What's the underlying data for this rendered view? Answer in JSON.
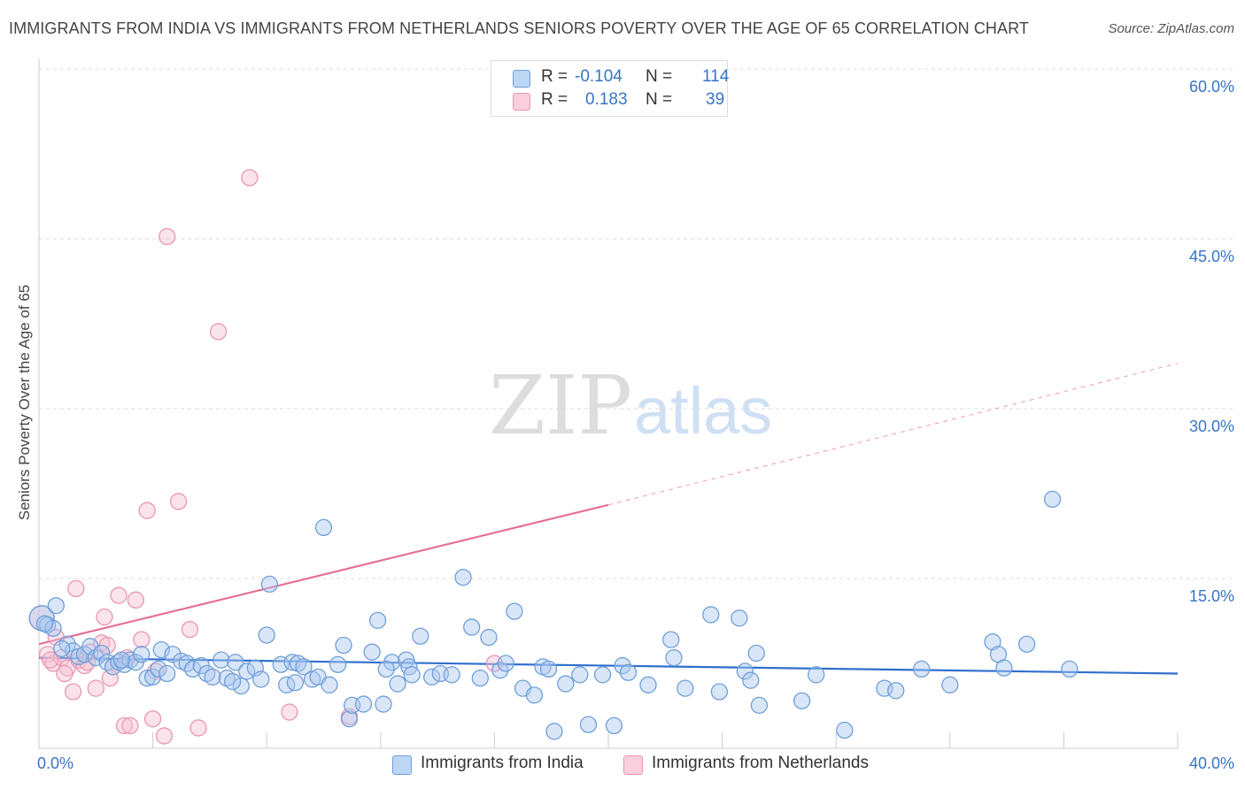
{
  "title": "IMMIGRANTS FROM INDIA VS IMMIGRANTS FROM NETHERLANDS SENIORS POVERTY OVER THE AGE OF 65 CORRELATION CHART",
  "source": "Source: ZipAtlas.com",
  "watermark": {
    "zip": "ZIP",
    "atlas": "atlas"
  },
  "colors": {
    "india_fill": "#aac8f0",
    "india_stroke": "#6f9fd8",
    "india_line": "#2f6fcc",
    "neth_fill": "#f7c0d2",
    "neth_stroke": "#e996b3",
    "neth_line": "#e4709a",
    "tick_text": "#3873c8",
    "grid": "#dddddd"
  },
  "legend": {
    "r_label": "R =",
    "n_label": "N =",
    "india": {
      "r": "-0.104",
      "n": "114"
    },
    "netherlands": {
      "r": "0.183",
      "n": "39"
    }
  },
  "chart_data": {
    "type": "scatter",
    "title": "IMMIGRANTS FROM INDIA VS IMMIGRANTS FROM NETHERLANDS SENIORS POVERTY OVER THE AGE OF 65 CORRELATION CHART",
    "xlabel": "",
    "ylabel": "Seniors Poverty Over the Age of 65",
    "xlim": [
      0,
      40
    ],
    "ylim": [
      0,
      60
    ],
    "x_tick_labels": [
      "0.0%",
      "40.0%"
    ],
    "y_ticks": [
      15,
      30,
      45,
      60
    ],
    "y_tick_labels": [
      "15.0%",
      "30.0%",
      "45.0%",
      "60.0%"
    ],
    "series": [
      {
        "name": "Immigrants from India",
        "trend": {
          "x": [
            0,
            40
          ],
          "y": [
            8.0,
            6.6
          ],
          "dashed_from": null
        },
        "points": [
          [
            0.1,
            11.5
          ],
          [
            0.3,
            10.9
          ],
          [
            0.5,
            10.6
          ],
          [
            0.6,
            12.6
          ],
          [
            1.0,
            9.2
          ],
          [
            1.2,
            8.6
          ],
          [
            1.4,
            8.1
          ],
          [
            1.6,
            8.3
          ],
          [
            1.8,
            9.0
          ],
          [
            2.0,
            8.0
          ],
          [
            2.2,
            8.4
          ],
          [
            2.4,
            7.6
          ],
          [
            2.6,
            7.2
          ],
          [
            2.8,
            7.6
          ],
          [
            3.0,
            7.4
          ],
          [
            3.2,
            7.8
          ],
          [
            3.4,
            7.6
          ],
          [
            3.6,
            8.3
          ],
          [
            3.8,
            6.2
          ],
          [
            4.0,
            6.3
          ],
          [
            4.2,
            7.0
          ],
          [
            4.3,
            8.7
          ],
          [
            4.5,
            6.6
          ],
          [
            4.7,
            8.3
          ],
          [
            5.0,
            7.7
          ],
          [
            5.2,
            7.5
          ],
          [
            5.4,
            7.0
          ],
          [
            5.7,
            7.3
          ],
          [
            5.9,
            6.6
          ],
          [
            6.1,
            6.3
          ],
          [
            6.4,
            7.8
          ],
          [
            6.6,
            6.2
          ],
          [
            6.9,
            7.6
          ],
          [
            7.1,
            5.5
          ],
          [
            7.3,
            6.8
          ],
          [
            7.6,
            7.1
          ],
          [
            7.8,
            6.1
          ],
          [
            8.0,
            10.0
          ],
          [
            8.1,
            14.5
          ],
          [
            8.5,
            7.4
          ],
          [
            8.7,
            5.6
          ],
          [
            8.9,
            7.6
          ],
          [
            9.1,
            7.5
          ],
          [
            9.3,
            7.2
          ],
          [
            9.6,
            6.1
          ],
          [
            9.8,
            6.3
          ],
          [
            10.0,
            19.5
          ],
          [
            10.2,
            5.6
          ],
          [
            10.5,
            7.4
          ],
          [
            10.7,
            9.1
          ],
          [
            10.9,
            2.6
          ],
          [
            11.0,
            3.8
          ],
          [
            11.4,
            3.9
          ],
          [
            11.7,
            8.5
          ],
          [
            11.9,
            11.3
          ],
          [
            12.1,
            3.9
          ],
          [
            12.4,
            7.6
          ],
          [
            12.6,
            5.7
          ],
          [
            12.9,
            7.8
          ],
          [
            13.0,
            7.2
          ],
          [
            13.4,
            9.9
          ],
          [
            13.8,
            6.3
          ],
          [
            14.1,
            6.6
          ],
          [
            14.5,
            6.5
          ],
          [
            14.9,
            15.1
          ],
          [
            15.2,
            10.7
          ],
          [
            15.5,
            6.2
          ],
          [
            15.8,
            9.8
          ],
          [
            16.2,
            6.9
          ],
          [
            16.4,
            7.5
          ],
          [
            16.7,
            12.1
          ],
          [
            17.0,
            5.3
          ],
          [
            17.4,
            4.7
          ],
          [
            17.7,
            7.2
          ],
          [
            17.9,
            7.0
          ],
          [
            18.1,
            1.5
          ],
          [
            18.5,
            5.7
          ],
          [
            19.0,
            6.5
          ],
          [
            19.3,
            2.1
          ],
          [
            19.8,
            6.5
          ],
          [
            20.2,
            2.0
          ],
          [
            20.5,
            7.3
          ],
          [
            20.7,
            6.7
          ],
          [
            21.4,
            5.6
          ],
          [
            22.2,
            9.6
          ],
          [
            22.3,
            8.0
          ],
          [
            22.7,
            5.3
          ],
          [
            23.6,
            11.8
          ],
          [
            23.9,
            5.0
          ],
          [
            24.6,
            11.5
          ],
          [
            24.8,
            6.8
          ],
          [
            25.0,
            6.0
          ],
          [
            25.2,
            8.4
          ],
          [
            25.3,
            3.8
          ],
          [
            26.8,
            4.2
          ],
          [
            27.3,
            6.5
          ],
          [
            28.3,
            1.6
          ],
          [
            29.7,
            5.3
          ],
          [
            30.1,
            5.1
          ],
          [
            31.0,
            7.0
          ],
          [
            32.0,
            5.6
          ],
          [
            33.5,
            9.4
          ],
          [
            33.7,
            8.3
          ],
          [
            33.9,
            7.1
          ],
          [
            34.7,
            9.2
          ],
          [
            35.6,
            22.0
          ],
          [
            36.2,
            7.0
          ],
          [
            0.2,
            11.0
          ],
          [
            9.0,
            5.8
          ],
          [
            12.2,
            7.0
          ],
          [
            0.8,
            8.8
          ],
          [
            2.9,
            7.8
          ],
          [
            6.8,
            5.9
          ],
          [
            13.1,
            6.5
          ]
        ],
        "sizes_large": [
          [
            0.1,
            11.5
          ]
        ]
      },
      {
        "name": "Immigrants from Netherlands",
        "trend": {
          "x": [
            0,
            20
          ],
          "y": [
            9.2,
            21.5
          ],
          "dashed_to": [
            40,
            34.0
          ]
        },
        "points": [
          [
            0.1,
            11.5
          ],
          [
            0.3,
            8.3
          ],
          [
            0.5,
            7.5
          ],
          [
            0.6,
            9.8
          ],
          [
            0.8,
            8.0
          ],
          [
            1.0,
            7.1
          ],
          [
            1.2,
            5.0
          ],
          [
            1.3,
            14.1
          ],
          [
            1.4,
            7.8
          ],
          [
            1.6,
            7.3
          ],
          [
            1.8,
            8.5
          ],
          [
            2.0,
            5.3
          ],
          [
            2.2,
            9.3
          ],
          [
            2.3,
            11.6
          ],
          [
            2.5,
            6.2
          ],
          [
            2.6,
            7.2
          ],
          [
            2.8,
            13.5
          ],
          [
            3.0,
            2.0
          ],
          [
            3.2,
            2.0
          ],
          [
            3.4,
            13.1
          ],
          [
            3.6,
            9.6
          ],
          [
            3.8,
            21.0
          ],
          [
            4.0,
            2.6
          ],
          [
            4.4,
            1.1
          ],
          [
            4.5,
            45.2
          ],
          [
            4.9,
            21.8
          ],
          [
            5.3,
            10.5
          ],
          [
            5.6,
            1.8
          ],
          [
            6.3,
            36.8
          ],
          [
            7.4,
            50.4
          ],
          [
            8.8,
            3.2
          ],
          [
            10.9,
            2.8
          ],
          [
            16.0,
            7.5
          ],
          [
            0.4,
            7.8
          ],
          [
            0.9,
            6.6
          ],
          [
            1.7,
            7.6
          ],
          [
            2.4,
            9.1
          ],
          [
            3.1,
            8.0
          ],
          [
            4.1,
            6.8
          ]
        ],
        "sizes_large": [
          [
            0.1,
            11.5
          ]
        ]
      }
    ]
  },
  "bottom_legend": {
    "india": "Immigrants from India",
    "netherlands": "Immigrants from Netherlands"
  }
}
